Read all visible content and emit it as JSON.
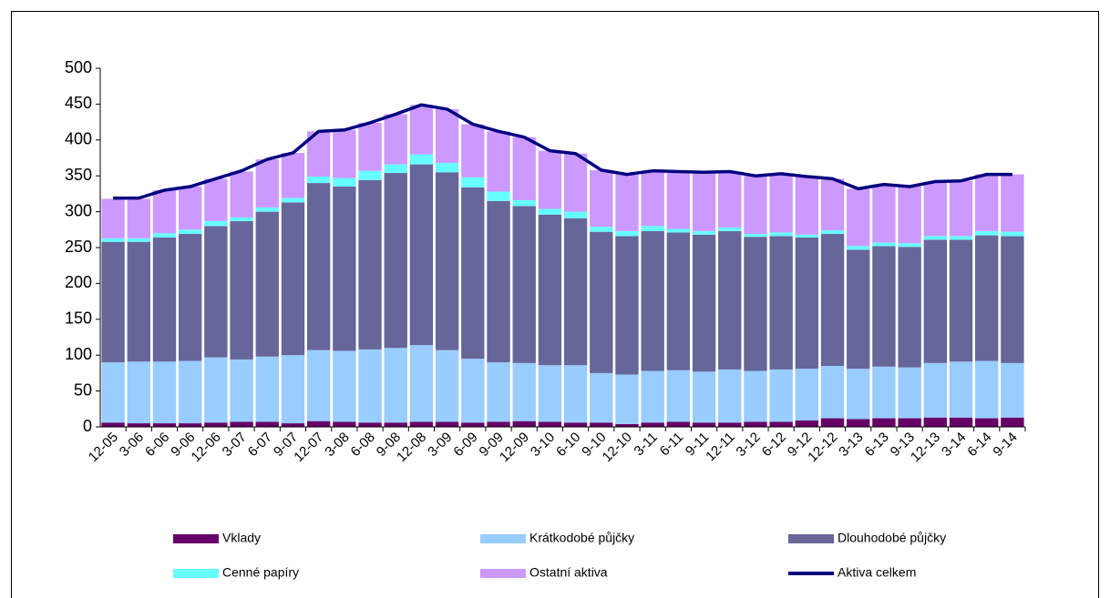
{
  "chart_data": {
    "type": "bar",
    "stacked": true,
    "categories": [
      "12-05",
      "3-06",
      "6-06",
      "9-06",
      "12-06",
      "3-07",
      "6-07",
      "9-07",
      "12-07",
      "3-08",
      "6-08",
      "9-08",
      "12-08",
      "3-09",
      "6-09",
      "9-09",
      "12-09",
      "3-10",
      "6-10",
      "9-10",
      "12-10",
      "3-11",
      "6-11",
      "9-11",
      "12-11",
      "3-12",
      "6-12",
      "9-12",
      "12-12",
      "3-13",
      "6-13",
      "9-13",
      "12-13",
      "3-14",
      "6-14",
      "9-14"
    ],
    "series": [
      {
        "name": "Vklady",
        "color": "#660066",
        "values": [
          6,
          5,
          5,
          5,
          6,
          7,
          7,
          5,
          8,
          7,
          6,
          6,
          7,
          7,
          6,
          7,
          8,
          7,
          6,
          6,
          4,
          6,
          7,
          6,
          6,
          7,
          7,
          9,
          12,
          11,
          12,
          12,
          13,
          13,
          12,
          13
        ]
      },
      {
        "name": "Krátkodobé půjčky",
        "color": "#99ccff",
        "values": [
          84,
          86,
          86,
          87,
          91,
          87,
          91,
          95,
          99,
          99,
          102,
          104,
          107,
          100,
          89,
          83,
          81,
          79,
          80,
          69,
          69,
          72,
          72,
          71,
          74,
          71,
          73,
          72,
          73,
          70,
          72,
          71,
          76,
          78,
          80,
          76
        ]
      },
      {
        "name": "Dlouhodobé půjčky",
        "color": "#666699",
        "values": [
          168,
          167,
          173,
          177,
          183,
          193,
          202,
          213,
          233,
          229,
          236,
          244,
          252,
          248,
          239,
          225,
          219,
          210,
          205,
          197,
          193,
          195,
          192,
          191,
          193,
          187,
          186,
          183,
          184,
          166,
          168,
          168,
          172,
          170,
          175,
          177
        ]
      },
      {
        "name": "Cenné papíry",
        "color": "#66ffff",
        "values": [
          5,
          5,
          6,
          6,
          7,
          5,
          6,
          6,
          9,
          12,
          13,
          12,
          14,
          13,
          14,
          13,
          8,
          8,
          9,
          7,
          7,
          7,
          5,
          5,
          5,
          4,
          5,
          4,
          5,
          5,
          5,
          5,
          5,
          5,
          6,
          6
        ]
      },
      {
        "name": "Ostatní aktiva",
        "color": "#cc99ff",
        "values": [
          55,
          55,
          60,
          60,
          59,
          64,
          67,
          63,
          63,
          67,
          67,
          70,
          69,
          75,
          74,
          84,
          88,
          81,
          81,
          79,
          79,
          77,
          80,
          82,
          78,
          81,
          82,
          81,
          72,
          80,
          81,
          79,
          76,
          77,
          79,
          80
        ]
      },
      {
        "name": "Aktiva celkem",
        "color": "#000080",
        "type": "line",
        "values": [
          319,
          319,
          330,
          335,
          346,
          357,
          373,
          382,
          412,
          414,
          424,
          436,
          449,
          443,
          422,
          412,
          404,
          385,
          381,
          358,
          352,
          357,
          356,
          355,
          356,
          350,
          353,
          349,
          346,
          332,
          338,
          335,
          342,
          343,
          352,
          352
        ]
      }
    ],
    "ylim": [
      0,
      500
    ],
    "yticks": [
      0,
      50,
      100,
      150,
      200,
      250,
      300,
      350,
      400,
      450,
      500
    ],
    "grid": false
  }
}
